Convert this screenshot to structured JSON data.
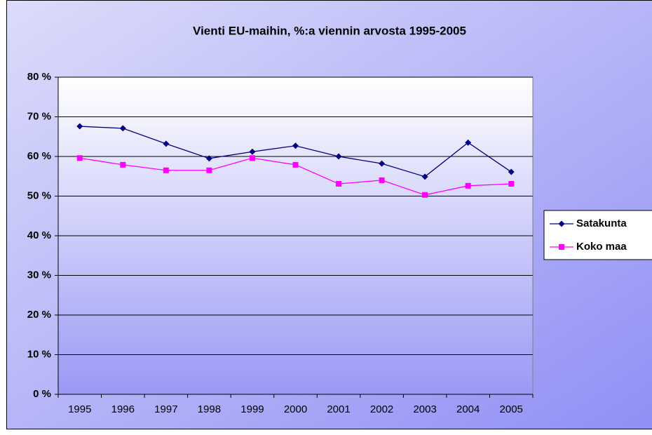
{
  "chart_data": {
    "type": "line",
    "title": "Vienti EU-maihin, %:a viennin arvosta 1995-2005",
    "categories": [
      "1995",
      "1996",
      "1997",
      "1998",
      "1999",
      "2000",
      "2001",
      "2002",
      "2003",
      "2004",
      "2005"
    ],
    "series": [
      {
        "name": "Satakunta",
        "color": "#000080",
        "marker": "diamond",
        "values": [
          67.6,
          67.1,
          63.2,
          59.5,
          61.2,
          62.7,
          60.0,
          58.2,
          54.9,
          63.5,
          56.1
        ]
      },
      {
        "name": "Koko maa",
        "color": "#ff00ff",
        "marker": "square",
        "values": [
          59.6,
          57.9,
          56.5,
          56.5,
          59.6,
          57.9,
          53.1,
          54.0,
          50.3,
          52.6,
          53.1
        ]
      }
    ],
    "ylim": [
      0,
      80
    ],
    "yticks": [
      {
        "value": 0,
        "label": "0 %"
      },
      {
        "value": 10,
        "label": "10 %"
      },
      {
        "value": 20,
        "label": "20 %"
      },
      {
        "value": 30,
        "label": "30 %"
      },
      {
        "value": 40,
        "label": "40 %"
      },
      {
        "value": 50,
        "label": "50 %"
      },
      {
        "value": 60,
        "label": "60 %"
      },
      {
        "value": 70,
        "label": "70 %"
      },
      {
        "value": 80,
        "label": "80 %"
      }
    ],
    "grid": true,
    "legend": "right"
  }
}
